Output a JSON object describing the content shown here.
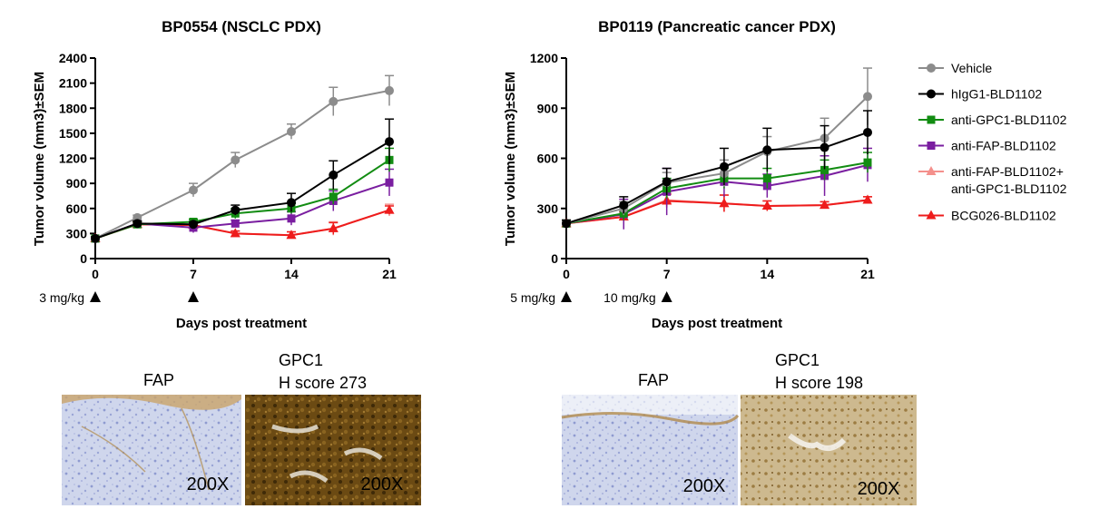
{
  "chart_data": [
    {
      "type": "line",
      "title": "BP0554 (NSCLC PDX)",
      "xlabel": "Days post treatment",
      "ylabel": "Tumor volume (mm3)±SEM",
      "xlim": [
        0,
        21
      ],
      "ylim": [
        0,
        2400
      ],
      "xticks": [
        0,
        7,
        14,
        21
      ],
      "yticks": [
        0,
        300,
        600,
        900,
        1200,
        1500,
        1800,
        2100,
        2400
      ],
      "x": [
        0,
        3,
        7,
        10,
        14,
        17,
        21
      ],
      "series": [
        {
          "name": "Vehicle",
          "values": [
            240,
            490,
            820,
            1180,
            1520,
            1880,
            2010
          ],
          "errors": [
            20,
            30,
            80,
            90,
            90,
            170,
            180
          ]
        },
        {
          "name": "hIgG1-BLD1102",
          "values": [
            240,
            420,
            410,
            580,
            670,
            1000,
            1400
          ],
          "errors": [
            20,
            30,
            30,
            60,
            110,
            170,
            270
          ]
        },
        {
          "name": "anti-GPC1-BLD1102",
          "values": [
            240,
            410,
            440,
            540,
            600,
            740,
            1180
          ],
          "errors": [
            20,
            30,
            30,
            60,
            60,
            90,
            140
          ]
        },
        {
          "name": "anti-FAP-BLD1102",
          "values": [
            240,
            420,
            370,
            420,
            480,
            690,
            910
          ],
          "errors": [
            20,
            30,
            60,
            40,
            80,
            120,
            160
          ]
        },
        {
          "name": "anti-FAP-BLD1102+ anti-GPC1-BLD1102",
          "values": [
            240,
            410,
            400,
            300,
            280,
            360,
            580
          ],
          "errors": [
            20,
            30,
            30,
            30,
            40,
            80,
            70
          ]
        },
        {
          "name": "BCG026-BLD1102",
          "values": [
            240,
            410,
            400,
            300,
            280,
            360,
            580
          ],
          "errors": [
            20,
            30,
            30,
            30,
            40,
            70,
            50
          ]
        }
      ],
      "dosing": [
        {
          "label": "3 mg/kg",
          "day": 0
        },
        {
          "label": "",
          "day": 7
        }
      ]
    },
    {
      "type": "line",
      "title": "BP0119 (Pancreatic cancer PDX)",
      "xlabel": "Days post treatment",
      "ylabel": "Tumor volume (mm3)±SEM",
      "xlim": [
        0,
        21
      ],
      "ylim": [
        0,
        1200
      ],
      "xticks": [
        0,
        7,
        14,
        21
      ],
      "yticks": [
        0,
        300,
        600,
        900,
        1200
      ],
      "x": [
        0,
        4,
        7,
        11,
        14,
        18,
        21
      ],
      "series": [
        {
          "name": "Vehicle",
          "values": [
            210,
            300,
            455,
            510,
            640,
            720,
            970
          ],
          "errors": [
            20,
            40,
            60,
            80,
            90,
            120,
            170
          ]
        },
        {
          "name": "hIgG1-BLD1102",
          "values": [
            210,
            320,
            460,
            550,
            650,
            665,
            755
          ],
          "errors": [
            20,
            50,
            80,
            110,
            130,
            130,
            130
          ]
        },
        {
          "name": "anti-GPC1-BLD1102",
          "values": [
            210,
            270,
            420,
            480,
            480,
            530,
            575
          ],
          "errors": [
            20,
            40,
            60,
            60,
            60,
            60,
            60
          ]
        },
        {
          "name": "anti-FAP-BLD1102",
          "values": [
            210,
            265,
            400,
            460,
            435,
            495,
            560
          ],
          "errors": [
            20,
            90,
            140,
            90,
            70,
            120,
            100
          ]
        },
        {
          "name": "anti-FAP-BLD1102+ anti-GPC1-BLD1102",
          "values": [
            210,
            250,
            350,
            330,
            315,
            320,
            350
          ],
          "errors": [
            20,
            30,
            40,
            50,
            30,
            20,
            20
          ]
        },
        {
          "name": "BCG026-BLD1102",
          "values": [
            210,
            250,
            345,
            330,
            315,
            320,
            350
          ],
          "errors": [
            20,
            30,
            40,
            50,
            30,
            20,
            20
          ]
        }
      ],
      "dosing": [
        {
          "label": "5 mg/kg",
          "day": 0
        },
        {
          "label": "10 mg/kg",
          "day": 7
        }
      ]
    }
  ],
  "legend": [
    {
      "label": "Vehicle",
      "color": "#8c8c8c",
      "marker": "circle"
    },
    {
      "label": "hIgG1-BLD1102",
      "color": "#000000",
      "marker": "circle"
    },
    {
      "label": "anti-GPC1-BLD1102",
      "color": "#128c12",
      "marker": "square"
    },
    {
      "label": "anti-FAP-BLD1102",
      "color": "#7a1ea0",
      "marker": "square"
    },
    {
      "label": "anti-FAP-BLD1102+",
      "label2": "anti-GPC1-BLD1102",
      "color": "#f4908c",
      "marker": "triangle"
    },
    {
      "label": "BCG026-BLD1102",
      "color": "#ee1c1c",
      "marker": "triangle"
    }
  ],
  "ihc_panels": [
    {
      "stain": "FAP",
      "magnification": "200X",
      "score_line1": "",
      "score_line2": "",
      "tone": "blue"
    },
    {
      "stain": "",
      "magnification": "200X",
      "score_line1": "GPC1",
      "score_line2": "H score 273",
      "tone": "brown-dense"
    },
    {
      "stain": "FAP",
      "magnification": "200X",
      "score_line1": "",
      "score_line2": "",
      "tone": "blue"
    },
    {
      "stain": "",
      "magnification": "200X",
      "score_line1": "GPC1",
      "score_line2": "H score 198",
      "tone": "brown-light"
    }
  ]
}
